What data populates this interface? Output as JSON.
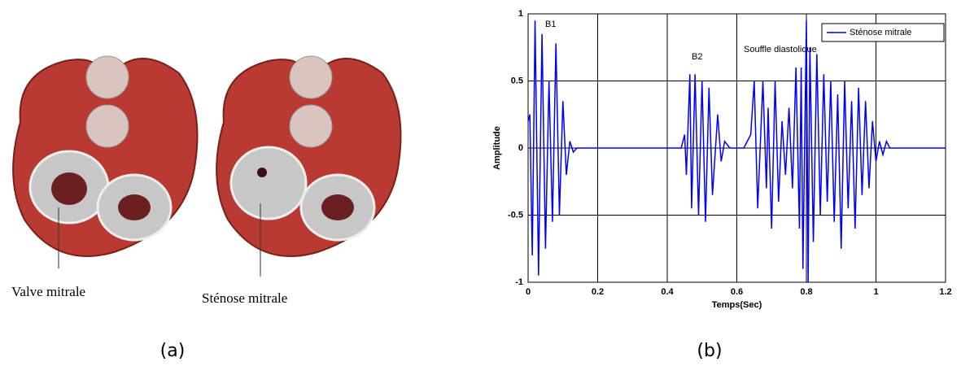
{
  "figure": {
    "left_labels": [
      "Valve mitrale",
      "Sténose mitrale"
    ],
    "captions": [
      "(a)",
      "(b)"
    ]
  },
  "chart_data": {
    "type": "line",
    "xlabel": "Temps(Sec)",
    "ylabel": "Amplitude",
    "annotations": [
      "B1",
      "B2",
      "Souffle diastolique"
    ],
    "xlim": [
      0,
      1.2
    ],
    "ylim": [
      -1,
      1
    ],
    "xticks": [
      0,
      0.2,
      0.4,
      0.6,
      0.8,
      1,
      1.2
    ],
    "yticks": [
      -1,
      -0.5,
      0,
      0.5,
      1
    ],
    "grid": true,
    "legend": "upper right",
    "series": [
      {
        "name": "Sténose mitrale",
        "color": "#0000ff",
        "x": [
          0,
          0.005,
          0.012,
          0.02,
          0.03,
          0.04,
          0.05,
          0.06,
          0.07,
          0.08,
          0.09,
          0.1,
          0.11,
          0.12,
          0.13,
          0.14,
          0.2,
          0.44,
          0.45,
          0.455,
          0.465,
          0.47,
          0.48,
          0.49,
          0.5,
          0.51,
          0.52,
          0.53,
          0.545,
          0.555,
          0.565,
          0.58,
          0.62,
          0.64,
          0.65,
          0.66,
          0.675,
          0.685,
          0.69,
          0.7,
          0.71,
          0.72,
          0.73,
          0.74,
          0.75,
          0.76,
          0.77,
          0.78,
          0.785,
          0.79,
          0.8,
          0.805,
          0.81,
          0.82,
          0.83,
          0.84,
          0.85,
          0.86,
          0.87,
          0.88,
          0.89,
          0.9,
          0.91,
          0.92,
          0.93,
          0.94,
          0.95,
          0.96,
          0.97,
          0.98,
          0.99,
          1.0,
          1.01,
          1.02,
          1.03,
          1.04,
          1.2
        ],
        "values": [
          0.2,
          0.25,
          -0.8,
          0.95,
          -0.95,
          0.85,
          -0.75,
          0.5,
          -0.55,
          0.78,
          -0.5,
          0.35,
          -0.2,
          0.05,
          -0.03,
          0,
          0,
          0,
          0.1,
          -0.2,
          0.55,
          -0.45,
          0.55,
          -0.5,
          0.5,
          -0.55,
          0.45,
          -0.35,
          0.25,
          -0.1,
          0.05,
          0,
          0,
          0.1,
          0.5,
          -0.45,
          0.5,
          -0.3,
          0.3,
          -0.6,
          0.5,
          -0.4,
          0.2,
          -0.2,
          0.3,
          -0.3,
          0.6,
          -0.6,
          0.6,
          -0.9,
          0.95,
          -1,
          0.75,
          -0.7,
          0.7,
          -0.5,
          0.55,
          -0.4,
          0.5,
          -0.55,
          0.4,
          -0.75,
          0.5,
          -0.45,
          0.35,
          -0.6,
          0.45,
          -0.35,
          0.35,
          -0.3,
          0.2,
          -0.1,
          0.05,
          -0.05,
          0.05,
          0,
          0
        ]
      }
    ]
  }
}
